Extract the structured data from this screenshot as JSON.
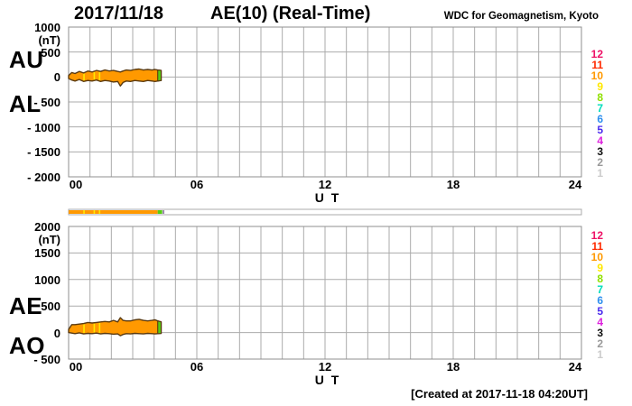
{
  "header": {
    "date": "2017/11/18",
    "title": "AE(10) (Real-Time)",
    "source": "WDC for Geomagnetism, Kyoto"
  },
  "footer": {
    "created": "[Created at 2017-11-18 04:20UT]"
  },
  "station_legend": {
    "items": [
      {
        "n": "12",
        "color": "#EE1166"
      },
      {
        "n": "11",
        "color": "#FF2A00"
      },
      {
        "n": "10",
        "color": "#FF9900"
      },
      {
        "n": "9",
        "color": "#FFE800"
      },
      {
        "n": "8",
        "color": "#8FE000"
      },
      {
        "n": "7",
        "color": "#00DDBB"
      },
      {
        "n": "6",
        "color": "#2E8FEE"
      },
      {
        "n": "5",
        "color": "#4B2BEE"
      },
      {
        "n": "4",
        "color": "#DD22DD"
      },
      {
        "n": "3",
        "color": "#111111"
      },
      {
        "n": "2",
        "color": "#999999"
      },
      {
        "n": "1",
        "color": "#CCCCCC"
      }
    ]
  },
  "availability_bar": {
    "xlim": [
      0,
      24
    ],
    "segments": [
      {
        "from": 0,
        "to": 4.17,
        "color": "#FF9900"
      },
      {
        "from": 4.17,
        "to": 4.38,
        "color": "#55CC11"
      }
    ],
    "ticks": [
      {
        "t": 0.72,
        "color": "#FFE800"
      },
      {
        "t": 1.2,
        "color": "#FFE800"
      },
      {
        "t": 1.45,
        "color": "#FFE800"
      },
      {
        "t": 4.44,
        "color": "#8A6F9E"
      }
    ]
  },
  "chart_data": [
    {
      "type": "area",
      "left_labels": [
        "AU",
        "AL"
      ],
      "unit": "(nT)",
      "xlabel": "U T",
      "xlim": [
        0,
        24
      ],
      "x_tick_values": [
        0,
        6,
        12,
        18,
        24
      ],
      "x_tick_labels": [
        "00",
        "06",
        "12",
        "18",
        "24"
      ],
      "ylim": [
        -2000,
        1000
      ],
      "y_tick_values": [
        1000,
        500,
        0,
        -500,
        -1000,
        -1500,
        -2000
      ],
      "y_tick_labels": [
        "1000",
        "500",
        "0",
        "- 500",
        "- 1000",
        "- 1500",
        "- 2000"
      ],
      "x": [
        0,
        0.15,
        0.3,
        0.5,
        0.7,
        0.9,
        1.1,
        1.3,
        1.5,
        1.7,
        1.9,
        2.1,
        2.3,
        2.42,
        2.55,
        2.7,
        2.9,
        3.1,
        3.3,
        3.5,
        3.7,
        3.9,
        4.05,
        4.17,
        4.33
      ],
      "series": [
        {
          "name": "AU",
          "values": [
            30,
            90,
            70,
            110,
            80,
            120,
            100,
            130,
            110,
            140,
            120,
            130,
            110,
            100,
            120,
            140,
            130,
            150,
            160,
            140,
            150,
            140,
            150,
            140,
            130
          ]
        },
        {
          "name": "AL",
          "values": [
            -30,
            -60,
            -80,
            -50,
            -90,
            -70,
            -80,
            -60,
            -90,
            -70,
            -80,
            -100,
            -90,
            -180,
            -110,
            -80,
            -90,
            -70,
            -80,
            -90,
            -70,
            -80,
            -90,
            -80,
            -70
          ]
        }
      ],
      "band": {
        "fill": "#FF9900",
        "outline": "#5A3A10",
        "tip_color": "#55CC11",
        "tip_start": 4.17,
        "yellow_marks": [
          0.72,
          1.2,
          1.45
        ],
        "yellow_color": "#FFE800"
      }
    },
    {
      "type": "area",
      "left_labels": [
        "AE",
        "AO"
      ],
      "unit": "(nT)",
      "xlabel": "U T",
      "xlim": [
        0,
        24
      ],
      "x_tick_values": [
        0,
        6,
        12,
        18,
        24
      ],
      "x_tick_labels": [
        "00",
        "06",
        "12",
        "18",
        "24"
      ],
      "ylim": [
        -500,
        2000
      ],
      "y_tick_values": [
        2000,
        1500,
        1000,
        500,
        0,
        -500
      ],
      "y_tick_labels": [
        "2000",
        "1500",
        "1000",
        "500",
        "0",
        "- 500"
      ],
      "x": [
        0,
        0.15,
        0.3,
        0.5,
        0.7,
        0.9,
        1.1,
        1.3,
        1.5,
        1.7,
        1.9,
        2.1,
        2.3,
        2.42,
        2.55,
        2.7,
        2.9,
        3.1,
        3.3,
        3.5,
        3.7,
        3.9,
        4.05,
        4.17,
        4.33
      ],
      "series": [
        {
          "name": "AE",
          "values": [
            60,
            150,
            150,
            160,
            170,
            190,
            180,
            190,
            200,
            210,
            200,
            230,
            200,
            280,
            230,
            220,
            220,
            240,
            250,
            230,
            220,
            230,
            240,
            220,
            200
          ]
        },
        {
          "name": "AO",
          "values": [
            0,
            -10,
            -20,
            -5,
            -25,
            -15,
            -20,
            -10,
            -25,
            -15,
            -20,
            -30,
            -25,
            -60,
            -35,
            -20,
            -25,
            -15,
            -20,
            -25,
            -15,
            -20,
            -25,
            -20,
            -15
          ]
        }
      ],
      "band": {
        "fill": "#FF9900",
        "outline": "#5A3A10",
        "tip_color": "#55CC11",
        "tip_start": 4.17,
        "yellow_marks": [
          0.72,
          1.2,
          1.45
        ],
        "yellow_color": "#FFE800"
      }
    }
  ]
}
